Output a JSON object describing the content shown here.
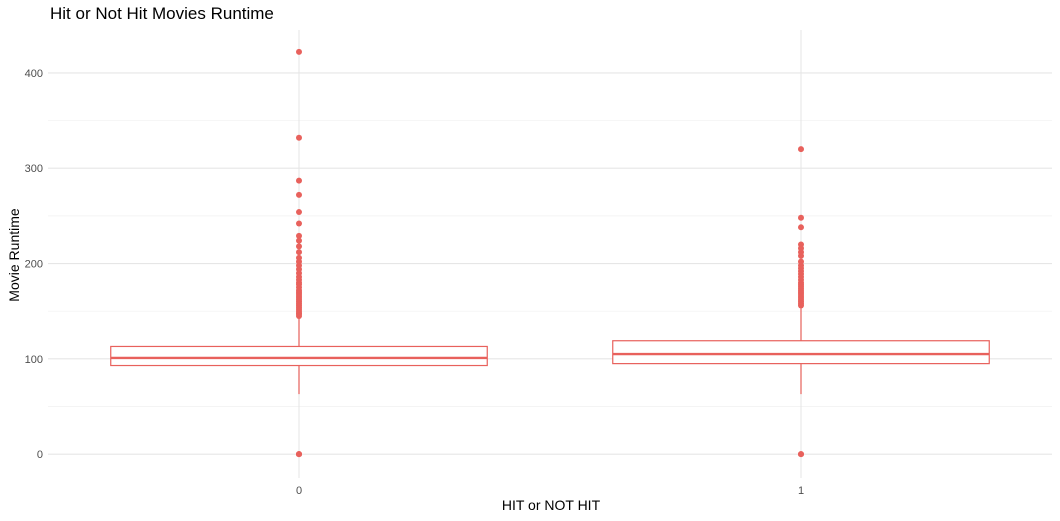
{
  "chart_data": {
    "type": "box",
    "title": "Hit or Not Hit Movies Runtime",
    "xlabel": "HIT or NOT HIT",
    "ylabel": "Movie Runtime",
    "categories": [
      "0",
      "1"
    ],
    "ylim": [
      -25,
      445
    ],
    "yticks": [
      0,
      100,
      200,
      300,
      400
    ],
    "grid": true,
    "legend": "none",
    "color": "#e8615c",
    "boxes": [
      {
        "category": "0",
        "whisker_low": 63,
        "q1": 93,
        "median": 101,
        "q3": 113,
        "whisker_high": 143,
        "outliers": [
          0,
          0,
          0,
          145,
          147,
          148,
          150,
          152,
          154,
          156,
          158,
          160,
          162,
          164,
          166,
          168,
          170,
          172,
          175,
          178,
          180,
          183,
          186,
          190,
          194,
          198,
          202,
          206,
          212,
          218,
          224,
          229,
          242,
          254,
          272,
          287,
          332,
          422
        ]
      },
      {
        "category": "1",
        "whisker_low": 63,
        "q1": 95,
        "median": 105,
        "q3": 119,
        "whisker_high": 153,
        "outliers": [
          0,
          0,
          156,
          158,
          160,
          162,
          164,
          166,
          168,
          170,
          172,
          174,
          176,
          178,
          180,
          183,
          186,
          189,
          192,
          195,
          198,
          202,
          208,
          212,
          216,
          220,
          238,
          248,
          320
        ]
      }
    ]
  }
}
